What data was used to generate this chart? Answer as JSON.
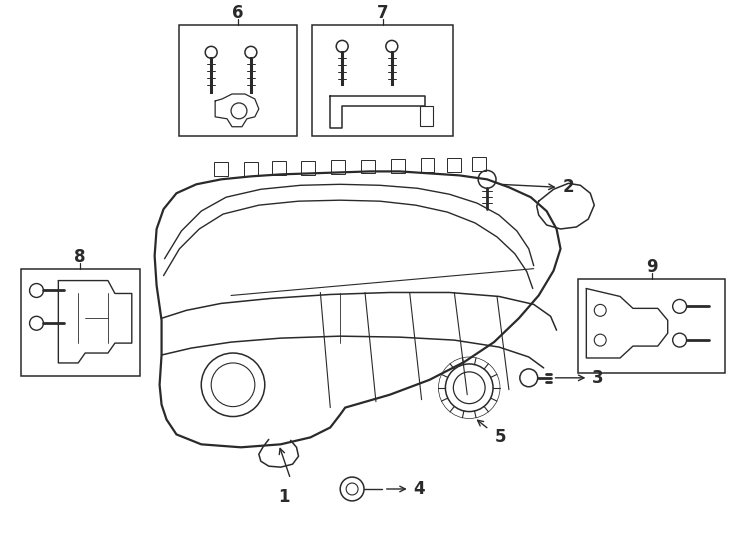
{
  "bg_color": "#ffffff",
  "lc": "#2a2a2a",
  "lw": 1.1,
  "fig_w": 7.34,
  "fig_h": 5.4,
  "dpi": 100
}
